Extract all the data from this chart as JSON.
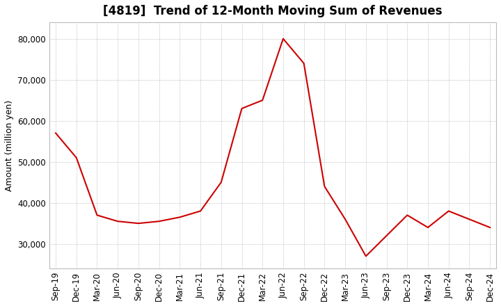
{
  "title": "[4819]  Trend of 12-Month Moving Sum of Revenues",
  "ylabel": "Amount (million yen)",
  "background_color": "#ffffff",
  "grid_color": "#aaaaaa",
  "line_color": "#cc0000",
  "x_labels": [
    "Sep-19",
    "Dec-19",
    "Mar-20",
    "Jun-20",
    "Sep-20",
    "Dec-20",
    "Mar-21",
    "Jun-21",
    "Sep-21",
    "Dec-21",
    "Mar-22",
    "Jun-22",
    "Sep-22",
    "Dec-22",
    "Mar-23",
    "Jun-23",
    "Sep-23",
    "Dec-23",
    "Mar-24",
    "Jun-24",
    "Sep-24",
    "Dec-24"
  ],
  "values": [
    57000,
    51000,
    37000,
    35500,
    35000,
    35500,
    36500,
    38000,
    45000,
    63000,
    65000,
    80000,
    74000,
    44000,
    36000,
    27000,
    32000,
    37000,
    34000,
    38000,
    36000,
    34000
  ],
  "ylim": [
    24000,
    84000
  ],
  "yticks": [
    30000,
    40000,
    50000,
    60000,
    70000,
    80000
  ],
  "title_fontsize": 12,
  "axis_fontsize": 9,
  "tick_fontsize": 8.5
}
